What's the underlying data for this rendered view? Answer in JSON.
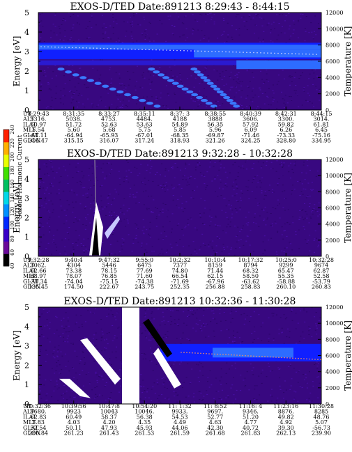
{
  "figure": {
    "colorbar": {
      "label": "Second Harmonic Current",
      "ticks": [
        "40",
        "60",
        "80",
        "100",
        "120",
        "140",
        "160",
        "180",
        "200",
        "220",
        "240"
      ],
      "colors": [
        "#000000",
        "#6a0a9a",
        "#3a00c8",
        "#0028ff",
        "#0090ff",
        "#00d8e8",
        "#00c060",
        "#40e000",
        "#e8ff00",
        "#ffb000",
        "#ff2000"
      ]
    },
    "colors": {
      "background": "#380880",
      "low": "#3c0890",
      "band_blue": "#1020ff",
      "band_light": "#2d6cff",
      "white": "#ffffff",
      "black": "#000000"
    }
  },
  "chart_data": [
    {
      "type": "heatmap",
      "title": "EXOS-D/TED   Date:891213  8:29:43 - 8:44:15",
      "ylabel": "Energy [eV]",
      "y2label": "Temperature [K]",
      "ylim": [
        0,
        5
      ],
      "y2lim": [
        0,
        12000
      ],
      "yticks": [
        "0",
        "1",
        "2",
        "3",
        "4",
        "5"
      ],
      "y2ticks": [
        "0",
        "2000",
        "4000",
        "6000",
        "8000",
        "10000",
        "12000"
      ],
      "ephemeris_labels": [
        "UT",
        "ALT",
        "ILAT",
        "MLT",
        "GLAT",
        "GLON"
      ],
      "ephemeris": [
        [
          "8:29:43",
          "5316.",
          "50.97",
          "5.54",
          "-64.11",
          "314.47"
        ],
        [
          "8:31:35",
          "5038.",
          "51.72",
          "5.60",
          "-64.94",
          "315.15"
        ],
        [
          "8:33:27",
          "4753.",
          "52.63",
          "5.68",
          "-65.93",
          "316.07"
        ],
        [
          "8:35:11",
          "4484.",
          "53.63",
          "5.75",
          "-67.01",
          "317.24"
        ],
        [
          "8:37: 3",
          "4188",
          "54.89",
          "5.85",
          "-68.35",
          "318.93"
        ],
        [
          "8:38:55",
          "3888",
          "56.35",
          "5.96",
          "-69.87",
          "321.26"
        ],
        [
          "8:40:39",
          "3606.",
          "57.92",
          "6.09",
          "-71.46",
          "324.25"
        ],
        [
          "8:42:31",
          "3300.",
          "59.82",
          "6.26",
          "-73.33",
          "328.80"
        ],
        [
          "8:44:15",
          "3014.",
          "61.81",
          "6.45",
          "-75.16",
          "334.95"
        ]
      ]
    },
    {
      "type": "heatmap",
      "title": "EXOS-D/TED   Date:891213  9:32:28 - 10:32:28",
      "ylabel": "Energy [eV]",
      "y2label": "Temperature [K]",
      "ylim": [
        0,
        5
      ],
      "y2lim": [
        0,
        12000
      ],
      "yticks": [
        "0",
        "1",
        "2",
        "3",
        "4",
        "5"
      ],
      "y2ticks": [
        "0",
        "2000",
        "4000",
        "6000",
        "8000",
        "10000",
        "12000"
      ],
      "ephemeris_labels": [
        "UT",
        "ALT",
        "ILAT",
        "MLT",
        "GLAT",
        "GLON"
      ],
      "ephemeris": [
        [
          "9:32:28",
          "3062.",
          "62.66",
          "68.97",
          "-70.34",
          "135.45"
        ],
        [
          "9:40:4",
          "4304",
          "73.38",
          "78.07",
          "-74.04",
          "174.50"
        ],
        [
          "9:47:32",
          "5446",
          "78.15",
          "76.85",
          "-75.15",
          "222.67"
        ],
        [
          "9:55:0",
          "6475",
          "77.69",
          "71.60",
          "-74.38",
          "243.75"
        ],
        [
          "10:2:32",
          "7377",
          "74.80",
          "66.54",
          "-71.69",
          "252.35"
        ],
        [
          "10:10:4",
          "8159",
          "71.44",
          "62.15",
          "-67.96",
          "256.88"
        ],
        [
          "10:17:32",
          "8794",
          "68.32",
          "58.50",
          "-63.62",
          "258.83"
        ],
        [
          "10:25:0",
          "9299",
          "65.47",
          "55.35",
          "-58.88",
          "260.10"
        ],
        [
          "10:32:28",
          "9674",
          "62.87",
          "52.58",
          "-53.79",
          "260.83"
        ]
      ]
    },
    {
      "type": "heatmap",
      "title": "EXOS-D/TED   Date:891213  10:32:36 - 11:30:28",
      "ylabel": "Energy [eV]",
      "y2label": "Temperature [K]",
      "ylim": [
        0,
        5
      ],
      "y2lim": [
        0,
        12000
      ],
      "yticks": [
        "0",
        "1",
        "2",
        "3",
        "4",
        "5"
      ],
      "y2ticks": [
        "0",
        "2000",
        "4000",
        "6000",
        "8000",
        "10000",
        "12000"
      ],
      "ephemeris_labels": [
        "UT",
        "ALT",
        "ILAT",
        "MLT",
        "GLAT",
        "GLON"
      ],
      "ephemeris": [
        [
          "10:32:36",
          "9680.",
          "62.83",
          "3.83",
          "52.54",
          "260.84"
        ],
        [
          "10:39:56",
          "9923",
          "60.49",
          "4.03",
          "50.11",
          "261.23"
        ],
        [
          "10:47:8",
          "10043",
          "58.37",
          "4.20",
          "47.93",
          "261.43"
        ],
        [
          "10:54:20",
          "10046.",
          "56.38",
          "4.35",
          "45.93",
          "261.53"
        ],
        [
          "11: 1:32",
          "9933.",
          "54.53",
          "4.49",
          "44.06",
          "261.59"
        ],
        [
          "11: 8:52",
          "9697.",
          "52.77",
          "4.63",
          "42.30",
          "261.68"
        ],
        [
          "11:16: 4",
          "9346.",
          "51.20",
          "4.77",
          "40.72",
          "261.83"
        ],
        [
          "11:23:16",
          "8876.",
          "49.82",
          "4.92",
          "39.30",
          "262.13"
        ],
        [
          "11:30:28",
          "8285",
          "48.76",
          "5.07",
          "-56.73",
          "239.90"
        ]
      ]
    }
  ]
}
